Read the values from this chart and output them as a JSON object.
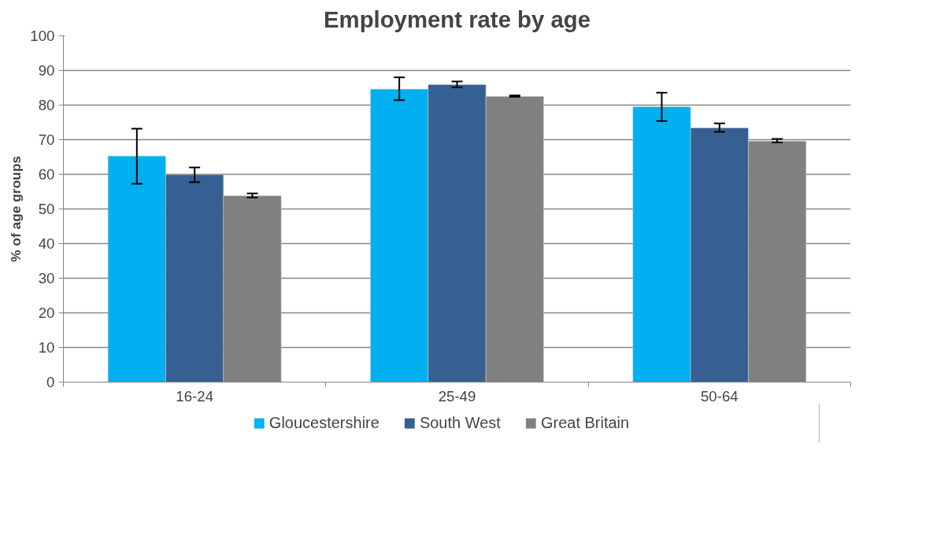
{
  "chart_data": {
    "type": "bar",
    "title": "Employment rate by age",
    "ylabel": "% of age groups",
    "categories": [
      "16-24",
      "25-49",
      "50-64"
    ],
    "series": [
      {
        "name": "Gloucestershire",
        "color": "#00b0f0",
        "values": [
          65.3,
          84.6,
          79.5
        ],
        "errors": [
          [
            57.3,
            73.2
          ],
          [
            81.4,
            88.0
          ],
          [
            75.4,
            83.6
          ]
        ]
      },
      {
        "name": "South West",
        "color": "#366092",
        "values": [
          59.9,
          85.9,
          73.4
        ],
        "errors": [
          [
            57.7,
            62.0
          ],
          [
            85.1,
            86.8
          ],
          [
            72.3,
            74.7
          ]
        ]
      },
      {
        "name": "Great Britain",
        "color": "#808080",
        "values": [
          53.8,
          82.5,
          69.6
        ],
        "errors": [
          [
            53.3,
            54.5
          ],
          [
            82.4,
            82.8
          ],
          [
            69.2,
            70.2
          ]
        ]
      }
    ],
    "ylim": [
      0,
      100
    ],
    "yticks": [
      0,
      10,
      20,
      30,
      40,
      50,
      60,
      70,
      80,
      90,
      100
    ],
    "grid": "y",
    "legend": "bottom"
  }
}
